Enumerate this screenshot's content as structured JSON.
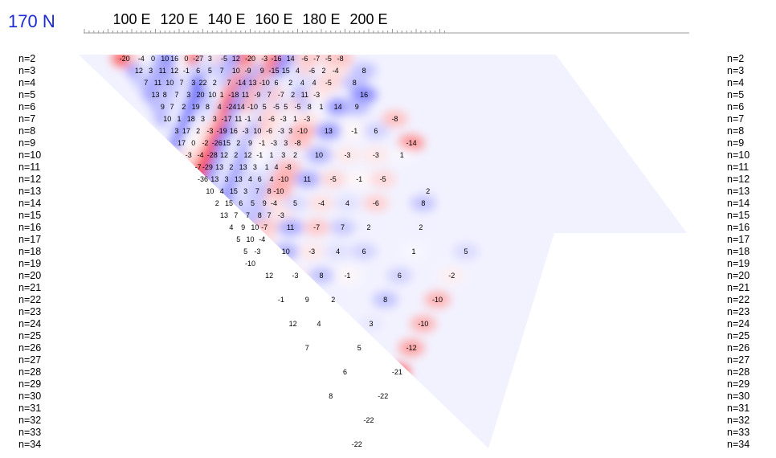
{
  "chart_data": {
    "type": "heatmap",
    "title": "170 N",
    "x_axis": {
      "tick_labels": [
        "100 E",
        "120 E",
        "140 E",
        "160 E",
        "180 E",
        "200 E"
      ],
      "tick_values": [
        100,
        120,
        140,
        160,
        180,
        200
      ]
    },
    "y_axis": {
      "labels": [
        "n=2",
        "n=3",
        "n=4",
        "n=5",
        "n=6",
        "n=7",
        "n=8",
        "n=9",
        "n=10",
        "n=11",
        "n=12",
        "n=13",
        "n=14",
        "n=15",
        "n=16",
        "n=17",
        "n=18",
        "n=19",
        "n=20",
        "n=21",
        "n=22",
        "n=23",
        "n=24",
        "n=25",
        "n=26",
        "n=27",
        "n=28",
        "n=29",
        "n=30",
        "n=31",
        "n=32",
        "n=33",
        "n=34"
      ],
      "reversed": true
    },
    "colorscale": {
      "negative": "#ff2020",
      "zero": "#ffffff",
      "positive": "#3030ff"
    },
    "values": [
      {
        "x": 97,
        "n": 2,
        "v": -20
      },
      {
        "x": 104,
        "n": 2,
        "v": -4
      },
      {
        "x": 109,
        "n": 2,
        "v": 0
      },
      {
        "x": 114,
        "n": 2,
        "v": 10
      },
      {
        "x": 118,
        "n": 2,
        "v": 16
      },
      {
        "x": 123,
        "n": 2,
        "v": 0
      },
      {
        "x": 128,
        "n": 2,
        "v": -27
      },
      {
        "x": 133,
        "n": 2,
        "v": 3
      },
      {
        "x": 139,
        "n": 2,
        "v": -5
      },
      {
        "x": 144,
        "n": 2,
        "v": 12
      },
      {
        "x": 150,
        "n": 2,
        "v": -20
      },
      {
        "x": 156,
        "n": 2,
        "v": -3
      },
      {
        "x": 161,
        "n": 2,
        "v": -16
      },
      {
        "x": 167,
        "n": 2,
        "v": 14
      },
      {
        "x": 173,
        "n": 2,
        "v": -6
      },
      {
        "x": 178,
        "n": 2,
        "v": -7
      },
      {
        "x": 183,
        "n": 2,
        "v": -5
      },
      {
        "x": 188,
        "n": 2,
        "v": -8
      },
      {
        "x": 103,
        "n": 3,
        "v": 12
      },
      {
        "x": 108,
        "n": 3,
        "v": 3
      },
      {
        "x": 113,
        "n": 3,
        "v": 11
      },
      {
        "x": 118,
        "n": 3,
        "v": 12
      },
      {
        "x": 123,
        "n": 3,
        "v": -1
      },
      {
        "x": 128,
        "n": 3,
        "v": 6
      },
      {
        "x": 133,
        "n": 3,
        "v": 5
      },
      {
        "x": 138,
        "n": 3,
        "v": 7
      },
      {
        "x": 144,
        "n": 3,
        "v": 10
      },
      {
        "x": 149,
        "n": 3,
        "v": -9
      },
      {
        "x": 155,
        "n": 3,
        "v": 9
      },
      {
        "x": 160,
        "n": 3,
        "v": -15
      },
      {
        "x": 165,
        "n": 3,
        "v": 15
      },
      {
        "x": 170,
        "n": 3,
        "v": 4
      },
      {
        "x": 176,
        "n": 3,
        "v": -6
      },
      {
        "x": 181,
        "n": 3,
        "v": 2
      },
      {
        "x": 186,
        "n": 3,
        "v": -4
      },
      {
        "x": 198,
        "n": 3,
        "v": 8
      },
      {
        "x": 106,
        "n": 4,
        "v": 7
      },
      {
        "x": 111,
        "n": 4,
        "v": 11
      },
      {
        "x": 116,
        "n": 4,
        "v": 10
      },
      {
        "x": 121,
        "n": 4,
        "v": 7
      },
      {
        "x": 126,
        "n": 4,
        "v": 3
      },
      {
        "x": 130,
        "n": 4,
        "v": 22
      },
      {
        "x": 135,
        "n": 4,
        "v": 2
      },
      {
        "x": 141,
        "n": 4,
        "v": 7
      },
      {
        "x": 146,
        "n": 4,
        "v": -14
      },
      {
        "x": 151,
        "n": 4,
        "v": 13
      },
      {
        "x": 156,
        "n": 4,
        "v": -10
      },
      {
        "x": 161,
        "n": 4,
        "v": 6
      },
      {
        "x": 167,
        "n": 4,
        "v": 2
      },
      {
        "x": 172,
        "n": 4,
        "v": 4
      },
      {
        "x": 177,
        "n": 4,
        "v": 4
      },
      {
        "x": 183,
        "n": 4,
        "v": -5
      },
      {
        "x": 194,
        "n": 4,
        "v": 8
      },
      {
        "x": 110,
        "n": 5,
        "v": 13
      },
      {
        "x": 114,
        "n": 5,
        "v": 8
      },
      {
        "x": 119,
        "n": 5,
        "v": 7
      },
      {
        "x": 124,
        "n": 5,
        "v": 3
      },
      {
        "x": 129,
        "n": 5,
        "v": 20
      },
      {
        "x": 134,
        "n": 5,
        "v": 10
      },
      {
        "x": 138,
        "n": 5,
        "v": 1
      },
      {
        "x": 143,
        "n": 5,
        "v": -18
      },
      {
        "x": 148,
        "n": 5,
        "v": 11
      },
      {
        "x": 153,
        "n": 5,
        "v": -9
      },
      {
        "x": 158,
        "n": 5,
        "v": 7
      },
      {
        "x": 163,
        "n": 5,
        "v": -7
      },
      {
        "x": 168,
        "n": 5,
        "v": 2
      },
      {
        "x": 173,
        "n": 5,
        "v": 11
      },
      {
        "x": 178,
        "n": 5,
        "v": -3
      },
      {
        "x": 198,
        "n": 5,
        "v": 16
      },
      {
        "x": 113,
        "n": 6,
        "v": 9
      },
      {
        "x": 117,
        "n": 6,
        "v": 7
      },
      {
        "x": 122,
        "n": 6,
        "v": 2
      },
      {
        "x": 127,
        "n": 6,
        "v": 19
      },
      {
        "x": 132,
        "n": 6,
        "v": 8
      },
      {
        "x": 137,
        "n": 6,
        "v": 4
      },
      {
        "x": 142,
        "n": 6,
        "v": -24
      },
      {
        "x": 146,
        "n": 6,
        "v": 14
      },
      {
        "x": 151,
        "n": 6,
        "v": -10
      },
      {
        "x": 156,
        "n": 6,
        "v": 5
      },
      {
        "x": 161,
        "n": 6,
        "v": -5
      },
      {
        "x": 165,
        "n": 6,
        "v": 5
      },
      {
        "x": 170,
        "n": 6,
        "v": -5
      },
      {
        "x": 175,
        "n": 6,
        "v": 8
      },
      {
        "x": 180,
        "n": 6,
        "v": 1
      },
      {
        "x": 187,
        "n": 6,
        "v": 14
      },
      {
        "x": 195,
        "n": 6,
        "v": 9
      },
      {
        "x": 115,
        "n": 7,
        "v": 10
      },
      {
        "x": 120,
        "n": 7,
        "v": 1
      },
      {
        "x": 125,
        "n": 7,
        "v": 18
      },
      {
        "x": 130,
        "n": 7,
        "v": 3
      },
      {
        "x": 135,
        "n": 7,
        "v": 3
      },
      {
        "x": 140,
        "n": 7,
        "v": -17
      },
      {
        "x": 145,
        "n": 7,
        "v": 11
      },
      {
        "x": 149,
        "n": 7,
        "v": -1
      },
      {
        "x": 154,
        "n": 7,
        "v": 4
      },
      {
        "x": 159,
        "n": 7,
        "v": -6
      },
      {
        "x": 164,
        "n": 7,
        "v": -3
      },
      {
        "x": 169,
        "n": 7,
        "v": 1
      },
      {
        "x": 174,
        "n": 7,
        "v": -3
      },
      {
        "x": 211,
        "n": 7,
        "v": -8
      },
      {
        "x": 119,
        "n": 8,
        "v": 3
      },
      {
        "x": 123,
        "n": 8,
        "v": 17
      },
      {
        "x": 128,
        "n": 8,
        "v": 2
      },
      {
        "x": 133,
        "n": 8,
        "v": -3
      },
      {
        "x": 138,
        "n": 8,
        "v": -19
      },
      {
        "x": 143,
        "n": 8,
        "v": 16
      },
      {
        "x": 148,
        "n": 8,
        "v": -3
      },
      {
        "x": 153,
        "n": 8,
        "v": 10
      },
      {
        "x": 158,
        "n": 8,
        "v": -6
      },
      {
        "x": 163,
        "n": 8,
        "v": -3
      },
      {
        "x": 167,
        "n": 8,
        "v": 3
      },
      {
        "x": 172,
        "n": 8,
        "v": -10
      },
      {
        "x": 183,
        "n": 8,
        "v": 13
      },
      {
        "x": 194,
        "n": 8,
        "v": -1
      },
      {
        "x": 203,
        "n": 8,
        "v": 6
      },
      {
        "x": 121,
        "n": 9,
        "v": 17
      },
      {
        "x": 126,
        "n": 9,
        "v": 0
      },
      {
        "x": 131,
        "n": 9,
        "v": -2
      },
      {
        "x": 136,
        "n": 9,
        "v": -26
      },
      {
        "x": 140,
        "n": 9,
        "v": 15
      },
      {
        "x": 145,
        "n": 9,
        "v": 2
      },
      {
        "x": 150,
        "n": 9,
        "v": 9
      },
      {
        "x": 155,
        "n": 9,
        "v": -1
      },
      {
        "x": 160,
        "n": 9,
        "v": -3
      },
      {
        "x": 165,
        "n": 9,
        "v": 3
      },
      {
        "x": 170,
        "n": 9,
        "v": -8
      },
      {
        "x": 218,
        "n": 9,
        "v": -14
      },
      {
        "x": 124,
        "n": 10,
        "v": -3
      },
      {
        "x": 129,
        "n": 10,
        "v": -4
      },
      {
        "x": 134,
        "n": 10,
        "v": -28
      },
      {
        "x": 139,
        "n": 10,
        "v": 12
      },
      {
        "x": 144,
        "n": 10,
        "v": 2
      },
      {
        "x": 149,
        "n": 10,
        "v": 12
      },
      {
        "x": 154,
        "n": 10,
        "v": -1
      },
      {
        "x": 159,
        "n": 10,
        "v": 1
      },
      {
        "x": 164,
        "n": 10,
        "v": 3
      },
      {
        "x": 169,
        "n": 10,
        "v": 2
      },
      {
        "x": 179,
        "n": 10,
        "v": 10
      },
      {
        "x": 191,
        "n": 10,
        "v": -3
      },
      {
        "x": 203,
        "n": 10,
        "v": -3
      },
      {
        "x": 214,
        "n": 10,
        "v": 1
      },
      {
        "x": 128,
        "n": 11,
        "v": -7
      },
      {
        "x": 132,
        "n": 11,
        "v": -29
      },
      {
        "x": 137,
        "n": 11,
        "v": 13
      },
      {
        "x": 142,
        "n": 11,
        "v": 2
      },
      {
        "x": 147,
        "n": 11,
        "v": 13
      },
      {
        "x": 152,
        "n": 11,
        "v": 3
      },
      {
        "x": 157,
        "n": 11,
        "v": 1
      },
      {
        "x": 161,
        "n": 11,
        "v": 4
      },
      {
        "x": 166,
        "n": 11,
        "v": -8
      },
      {
        "x": 130,
        "n": 12,
        "v": -36
      },
      {
        "x": 135,
        "n": 12,
        "v": 13
      },
      {
        "x": 140,
        "n": 12,
        "v": 3
      },
      {
        "x": 145,
        "n": 12,
        "v": 13
      },
      {
        "x": 150,
        "n": 12,
        "v": 4
      },
      {
        "x": 154,
        "n": 12,
        "v": 6
      },
      {
        "x": 159,
        "n": 12,
        "v": 4
      },
      {
        "x": 164,
        "n": 12,
        "v": -10
      },
      {
        "x": 174,
        "n": 12,
        "v": 11
      },
      {
        "x": 185,
        "n": 12,
        "v": -5
      },
      {
        "x": 196,
        "n": 12,
        "v": -1
      },
      {
        "x": 206,
        "n": 12,
        "v": -5
      },
      {
        "x": 133,
        "n": 13,
        "v": 10
      },
      {
        "x": 138,
        "n": 13,
        "v": 4
      },
      {
        "x": 143,
        "n": 13,
        "v": 15
      },
      {
        "x": 148,
        "n": 13,
        "v": 3
      },
      {
        "x": 153,
        "n": 13,
        "v": 7
      },
      {
        "x": 158,
        "n": 13,
        "v": 8
      },
      {
        "x": 162,
        "n": 13,
        "v": -10
      },
      {
        "x": 225,
        "n": 13,
        "v": 2
      },
      {
        "x": 136,
        "n": 14,
        "v": 2
      },
      {
        "x": 141,
        "n": 14,
        "v": 15
      },
      {
        "x": 146,
        "n": 14,
        "v": 6
      },
      {
        "x": 151,
        "n": 14,
        "v": 5
      },
      {
        "x": 156,
        "n": 14,
        "v": 9
      },
      {
        "x": 160,
        "n": 14,
        "v": -4
      },
      {
        "x": 169,
        "n": 14,
        "v": 5
      },
      {
        "x": 180,
        "n": 14,
        "v": -4
      },
      {
        "x": 191,
        "n": 14,
        "v": 4
      },
      {
        "x": 203,
        "n": 14,
        "v": -6
      },
      {
        "x": 223,
        "n": 14,
        "v": 8
      },
      {
        "x": 139,
        "n": 15,
        "v": 13
      },
      {
        "x": 144,
        "n": 15,
        "v": 7
      },
      {
        "x": 149,
        "n": 15,
        "v": 7
      },
      {
        "x": 154,
        "n": 15,
        "v": 8
      },
      {
        "x": 158,
        "n": 15,
        "v": 7
      },
      {
        "x": 163,
        "n": 15,
        "v": -3
      },
      {
        "x": 142,
        "n": 16,
        "v": 4
      },
      {
        "x": 147,
        "n": 16,
        "v": 9
      },
      {
        "x": 152,
        "n": 16,
        "v": 10
      },
      {
        "x": 156,
        "n": 16,
        "v": -7
      },
      {
        "x": 167,
        "n": 16,
        "v": 11
      },
      {
        "x": 178,
        "n": 16,
        "v": -7
      },
      {
        "x": 189,
        "n": 16,
        "v": 7
      },
      {
        "x": 200,
        "n": 16,
        "v": 2
      },
      {
        "x": 222,
        "n": 16,
        "v": 2
      },
      {
        "x": 145,
        "n": 17,
        "v": 5
      },
      {
        "x": 150,
        "n": 17,
        "v": 10
      },
      {
        "x": 155,
        "n": 17,
        "v": -4
      },
      {
        "x": 148,
        "n": 18,
        "v": 5
      },
      {
        "x": 153,
        "n": 18,
        "v": -3
      },
      {
        "x": 165,
        "n": 18,
        "v": 10
      },
      {
        "x": 176,
        "n": 18,
        "v": -3
      },
      {
        "x": 187,
        "n": 18,
        "v": 4
      },
      {
        "x": 198,
        "n": 18,
        "v": 6
      },
      {
        "x": 219,
        "n": 18,
        "v": 1
      },
      {
        "x": 241,
        "n": 18,
        "v": 5
      },
      {
        "x": 150,
        "n": 19,
        "v": -10
      },
      {
        "x": 158,
        "n": 20,
        "v": 12
      },
      {
        "x": 169,
        "n": 20,
        "v": -3
      },
      {
        "x": 180,
        "n": 20,
        "v": 8
      },
      {
        "x": 191,
        "n": 20,
        "v": -1
      },
      {
        "x": 213,
        "n": 20,
        "v": 6
      },
      {
        "x": 235,
        "n": 20,
        "v": -2
      },
      {
        "x": 163,
        "n": 22,
        "v": -1
      },
      {
        "x": 174,
        "n": 22,
        "v": 9
      },
      {
        "x": 185,
        "n": 22,
        "v": 2
      },
      {
        "x": 207,
        "n": 22,
        "v": 8
      },
      {
        "x": 229,
        "n": 22,
        "v": -10
      },
      {
        "x": 168,
        "n": 24,
        "v": 12
      },
      {
        "x": 179,
        "n": 24,
        "v": 4
      },
      {
        "x": 201,
        "n": 24,
        "v": 3
      },
      {
        "x": 223,
        "n": 24,
        "v": -10
      },
      {
        "x": 174,
        "n": 26,
        "v": 7
      },
      {
        "x": 196,
        "n": 26,
        "v": 5
      },
      {
        "x": 218,
        "n": 26,
        "v": -12
      },
      {
        "x": 190,
        "n": 28,
        "v": 6
      },
      {
        "x": 212,
        "n": 28,
        "v": -21
      },
      {
        "x": 184,
        "n": 30,
        "v": 8
      },
      {
        "x": 206,
        "n": 30,
        "v": -22
      },
      {
        "x": 200,
        "n": 32,
        "v": -22
      },
      {
        "x": 195,
        "n": 34,
        "v": -22
      }
    ]
  }
}
